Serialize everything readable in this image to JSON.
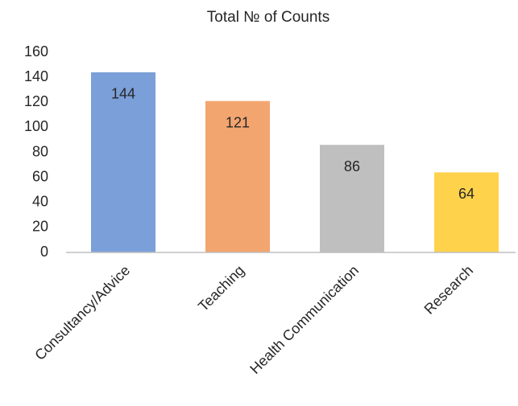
{
  "chart_data": {
    "type": "bar",
    "title": "Total № of Counts",
    "categories": [
      "Consultancy/Advice",
      "Teaching",
      "Health Communication",
      "Research"
    ],
    "values": [
      144,
      121,
      86,
      64
    ],
    "colors": [
      "#7b9fd8",
      "#f3a56f",
      "#bfbfbf",
      "#ffd24c"
    ],
    "ylim": [
      0,
      160
    ],
    "yticks": [
      0,
      20,
      40,
      60,
      80,
      100,
      120,
      140,
      160
    ],
    "grid": false
  }
}
